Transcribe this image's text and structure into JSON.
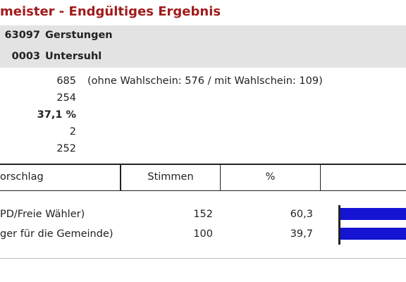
{
  "header": {
    "title": "meister - Endgültiges Ergebnis"
  },
  "location": [
    {
      "code": "63097",
      "name": "Gerstungen"
    },
    {
      "code": "0003",
      "name": "Untersuhl"
    }
  ],
  "summary": {
    "values": [
      "685",
      "254",
      "37,1 %",
      "2",
      "252"
    ],
    "note": "(ohne Wahlschein: 576 / mit Wahlschein: 109)"
  },
  "table": {
    "columns": [
      "orschlag",
      "Stimmen",
      "%"
    ],
    "rows": [
      [
        "PD/Freie Wähler)",
        "152",
        "60,3"
      ],
      [
        "ger für die Gemeinde)",
        "100",
        "39,7"
      ]
    ]
  }
}
